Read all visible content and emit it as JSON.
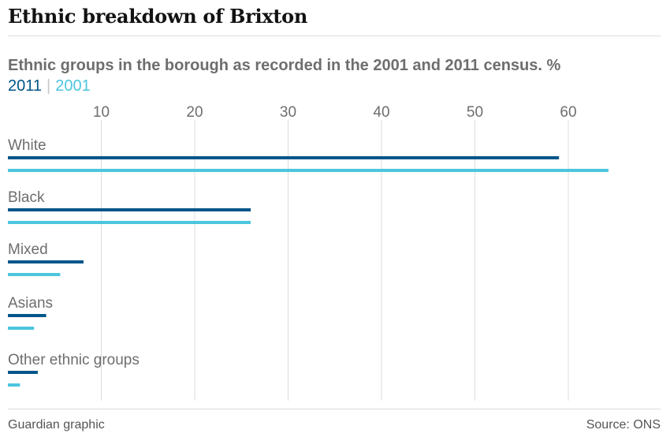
{
  "header": {
    "title": "Ethnic breakdown of Brixton",
    "subtitle": "Ethnic groups in the borough as recorded in the 2001 and 2011 census. %"
  },
  "legend": {
    "s2011": "2011",
    "separator": "|",
    "s2001": "2001"
  },
  "footer": {
    "credit": "Guardian graphic",
    "source": "Source: ONS"
  },
  "chart_data": {
    "type": "bar",
    "orientation": "horizontal",
    "categories": [
      "White",
      "Black",
      "Mixed",
      "Asians",
      "Other ethnic groups"
    ],
    "series": [
      {
        "name": "2011",
        "color": "#005689",
        "values": [
          59,
          26,
          8.1,
          4.1,
          3.2
        ]
      },
      {
        "name": "2001",
        "color": "#4bc6df",
        "values": [
          64.3,
          26,
          5.6,
          2.8,
          1.3
        ]
      }
    ],
    "xticks": [
      10,
      20,
      30,
      40,
      50,
      60
    ],
    "xlim": [
      0,
      70
    ],
    "grid": true
  }
}
